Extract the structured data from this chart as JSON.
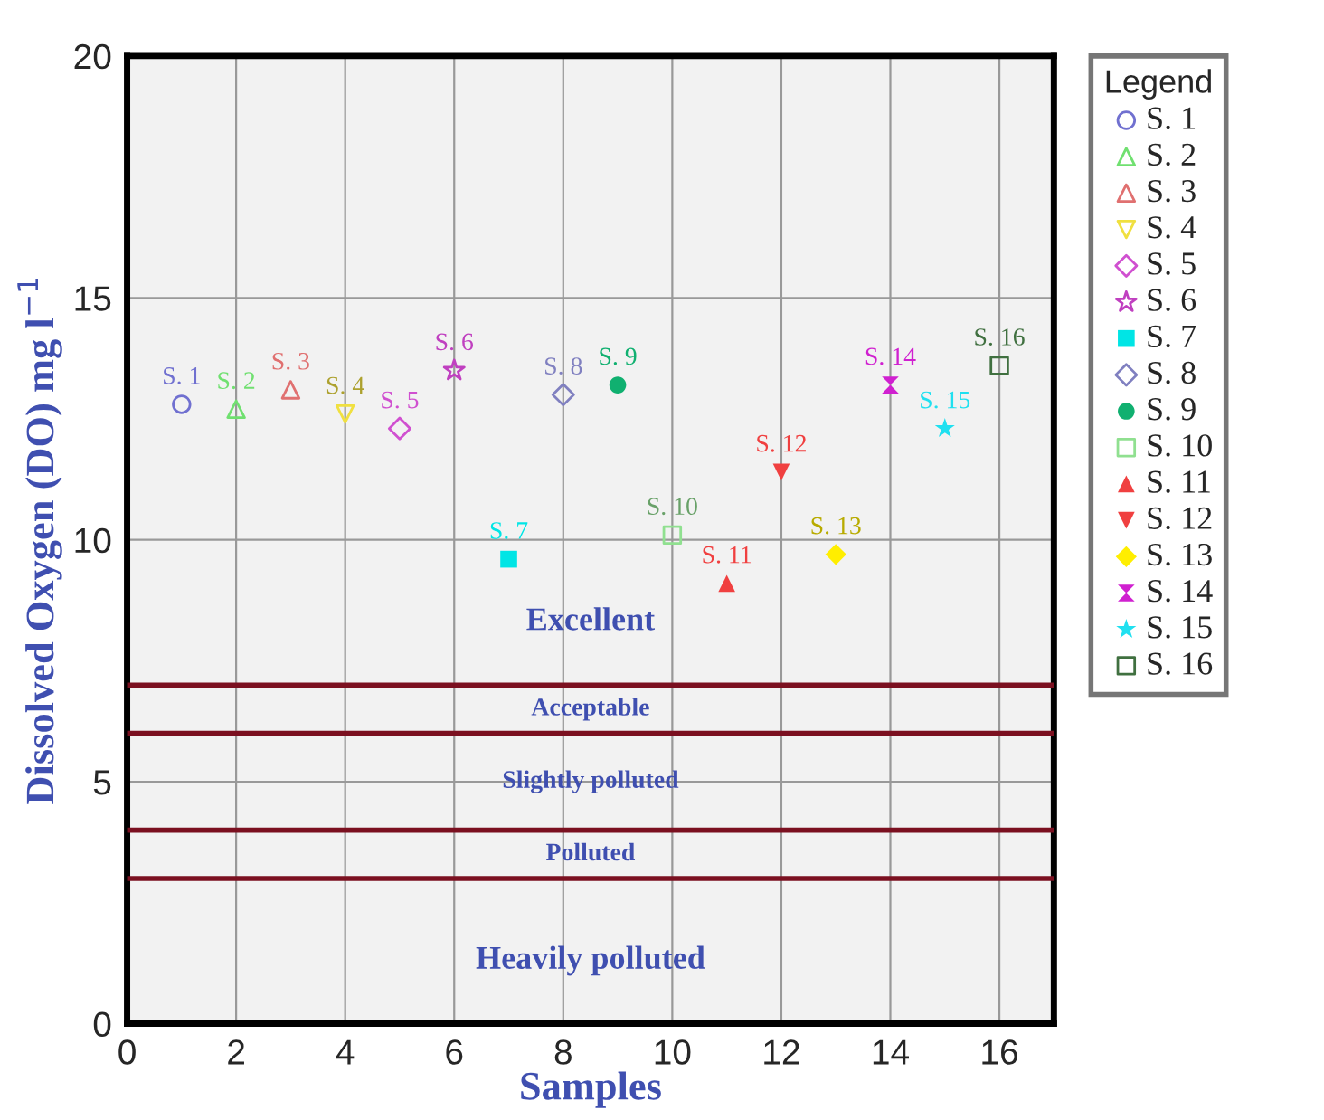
{
  "chart_data": {
    "type": "scatter",
    "xlabel": "Samples",
    "ylabel": "Dissolved Oxygen (DO) mg l$^{−1}$",
    "legend_title": "Legend",
    "xlim": [
      0,
      17
    ],
    "ylim": [
      0,
      20
    ],
    "xticks": [
      0,
      2,
      4,
      6,
      8,
      10,
      12,
      14,
      16
    ],
    "yticks": [
      0,
      5,
      10,
      15,
      20
    ],
    "grid": true,
    "legend": "right",
    "series": [
      {
        "name": "S. 1",
        "color": "#7070d0",
        "marker": "circle-open",
        "x": [
          1
        ],
        "values": [
          12.8
        ]
      },
      {
        "name": "S. 2",
        "color": "#70e070",
        "marker": "triangle-open",
        "x": [
          2
        ],
        "values": [
          12.7
        ]
      },
      {
        "name": "S. 3",
        "color": "#e07070",
        "marker": "triangle-open",
        "x": [
          3
        ],
        "values": [
          13.1
        ]
      },
      {
        "name": "S. 4",
        "color": "#f0e040",
        "marker": "triangle-down-open",
        "x": [
          4
        ],
        "values": [
          12.6
        ]
      },
      {
        "name": "S. 5",
        "color": "#d050d0",
        "marker": "diamond-open",
        "x": [
          5
        ],
        "values": [
          12.3
        ]
      },
      {
        "name": "S. 6",
        "color": "#c040c0",
        "marker": "star-open",
        "x": [
          6
        ],
        "values": [
          13.5
        ]
      },
      {
        "name": "S. 7",
        "color": "#00e5e5",
        "marker": "square",
        "x": [
          7
        ],
        "values": [
          9.6
        ]
      },
      {
        "name": "S. 8",
        "color": "#8080c0",
        "marker": "diamond-open",
        "x": [
          8
        ],
        "values": [
          13.0
        ]
      },
      {
        "name": "S. 9",
        "color": "#10b070",
        "marker": "circle",
        "x": [
          9
        ],
        "values": [
          13.2
        ]
      },
      {
        "name": "S. 10",
        "color": "#90e090",
        "marker": "square-open",
        "x": [
          10
        ],
        "values": [
          10.1
        ]
      },
      {
        "name": "S. 11",
        "color": "#f04040",
        "marker": "triangle",
        "x": [
          11
        ],
        "values": [
          9.1
        ]
      },
      {
        "name": "S. 12",
        "color": "#f04040",
        "marker": "triangle-down",
        "x": [
          12
        ],
        "values": [
          11.4
        ]
      },
      {
        "name": "S. 13",
        "color": "#ffee00",
        "marker": "diamond",
        "x": [
          13
        ],
        "values": [
          9.7
        ]
      },
      {
        "name": "S. 14",
        "color": "#d020d0",
        "x": [
          14
        ],
        "values": [
          13.2
        ]
      },
      {
        "name": "S. 15",
        "color": "#20e0f0",
        "marker": "star",
        "x": [
          15
        ],
        "values": [
          12.3
        ]
      },
      {
        "name": "S. 16",
        "color": "#407040",
        "marker": "square-open",
        "x": [
          16
        ],
        "values": [
          13.6
        ]
      }
    ],
    "ref_lines": [
      {
        "axis": "y",
        "value": 7,
        "color": "#7b1020"
      },
      {
        "axis": "y",
        "value": 6,
        "color": "#7b1020"
      },
      {
        "axis": "y",
        "value": 4,
        "color": "#7b1020"
      },
      {
        "axis": "y",
        "value": 3,
        "color": "#7b1020"
      }
    ],
    "bands": [
      {
        "axis": "y",
        "from": 7,
        "to": 20,
        "label": "Excellent",
        "color": "#f2f2f2"
      },
      {
        "axis": "y",
        "from": 6,
        "to": 7,
        "label": "Acceptable",
        "color": "#f2f2f2"
      },
      {
        "axis": "y",
        "from": 4,
        "to": 6,
        "label": "Slightly polluted",
        "color": "#f2f2f2"
      },
      {
        "axis": "y",
        "from": 3,
        "to": 4,
        "label": "Polluted",
        "color": "#f2f2f2"
      },
      {
        "axis": "y",
        "from": 0,
        "to": 3,
        "label": "Heavily polluted",
        "color": "#f2f2f2"
      }
    ]
  }
}
